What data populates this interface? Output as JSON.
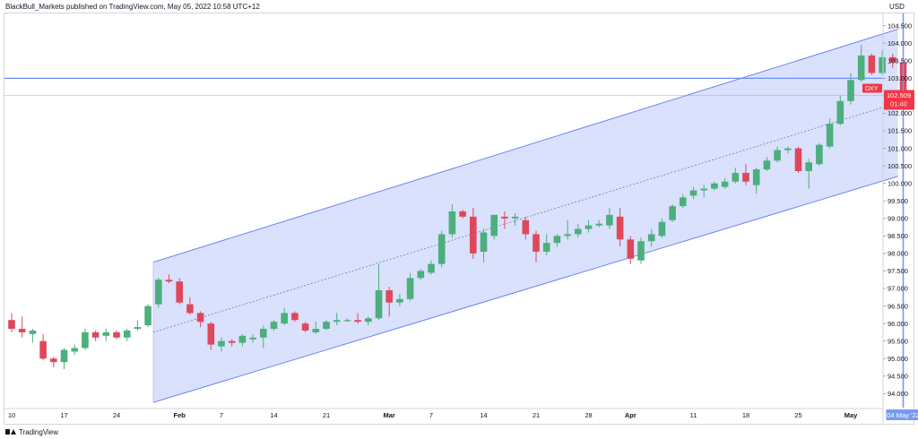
{
  "header": {
    "publisher": "BlackBull_Markets published on TradingView.com, May 05, 2022 10:58 UTC+12"
  },
  "footer": {
    "brand": "TradingView"
  },
  "colors": {
    "up": "#26a69a",
    "up_body": "#4caf7d",
    "down": "#ef5350",
    "down_body": "#e0475b",
    "channel_fill": "#d2dcfb",
    "channel_line": "#5b7cf0",
    "hline": "#6d8df5",
    "cursor": "#7a99f3",
    "price_line": "#f28b8b"
  },
  "chart_data": {
    "type": "candlestick",
    "symbol": "DXY",
    "currency": "USD",
    "last_price": "102.509",
    "countdown": "01:40",
    "horizontal_level": 103.0,
    "crosshair_date_label": "04 May '22",
    "x_labels": [
      {
        "label": "10",
        "bar": 0,
        "bold": false
      },
      {
        "label": "17",
        "bar": 5,
        "bold": false
      },
      {
        "label": "24",
        "bar": 10,
        "bold": false
      },
      {
        "label": "Feb",
        "bar": 16,
        "bold": true
      },
      {
        "label": "7",
        "bar": 20,
        "bold": false
      },
      {
        "label": "14",
        "bar": 25,
        "bold": false
      },
      {
        "label": "21",
        "bar": 30,
        "bold": false
      },
      {
        "label": "Mar",
        "bar": 36,
        "bold": true
      },
      {
        "label": "7",
        "bar": 40,
        "bold": false
      },
      {
        "label": "14",
        "bar": 45,
        "bold": false
      },
      {
        "label": "21",
        "bar": 50,
        "bold": false
      },
      {
        "label": "28",
        "bar": 55,
        "bold": false
      },
      {
        "label": "Apr",
        "bar": 59,
        "bold": true
      },
      {
        "label": "11",
        "bar": 65,
        "bold": false
      },
      {
        "label": "18",
        "bar": 70,
        "bold": false
      },
      {
        "label": "25",
        "bar": 75,
        "bold": false
      },
      {
        "label": "May",
        "bar": 80,
        "bold": true
      }
    ],
    "y_ticks": [
      "94.000",
      "94.500",
      "95.000",
      "95.500",
      "96.000",
      "96.500",
      "97.000",
      "97.500",
      "98.000",
      "98.500",
      "99.000",
      "99.500",
      "100.000",
      "100.500",
      "101.000",
      "101.500",
      "102.000",
      "102.500",
      "103.000",
      "103.500",
      "104.000",
      "104.500"
    ],
    "ylim": [
      93.6,
      104.85
    ],
    "channel": {
      "start_bar": 13.5,
      "end_bar": 84.5,
      "upper": [
        97.75,
        104.4
      ],
      "middle": [
        95.75,
        102.3
      ],
      "lower": [
        93.75,
        100.2
      ]
    },
    "candles": [
      {
        "o": 96.1,
        "h": 96.3,
        "l": 95.75,
        "c": 95.85
      },
      {
        "o": 95.85,
        "h": 96.2,
        "l": 95.6,
        "c": 95.75
      },
      {
        "o": 95.7,
        "h": 95.85,
        "l": 95.45,
        "c": 95.8
      },
      {
        "o": 95.5,
        "h": 95.7,
        "l": 94.95,
        "c": 95.0
      },
      {
        "o": 95.0,
        "h": 95.05,
        "l": 94.75,
        "c": 94.9
      },
      {
        "o": 94.9,
        "h": 95.3,
        "l": 94.7,
        "c": 95.25
      },
      {
        "o": 95.2,
        "h": 95.4,
        "l": 95.1,
        "c": 95.3
      },
      {
        "o": 95.3,
        "h": 95.85,
        "l": 95.25,
        "c": 95.75
      },
      {
        "o": 95.75,
        "h": 95.8,
        "l": 95.5,
        "c": 95.6
      },
      {
        "o": 95.65,
        "h": 95.85,
        "l": 95.5,
        "c": 95.75
      },
      {
        "o": 95.75,
        "h": 95.8,
        "l": 95.55,
        "c": 95.6
      },
      {
        "o": 95.6,
        "h": 95.85,
        "l": 95.5,
        "c": 95.8
      },
      {
        "o": 95.85,
        "h": 96.1,
        "l": 95.8,
        "c": 95.9
      },
      {
        "o": 95.95,
        "h": 96.55,
        "l": 95.9,
        "c": 96.5
      },
      {
        "o": 96.55,
        "h": 97.3,
        "l": 96.45,
        "c": 97.25
      },
      {
        "o": 97.25,
        "h": 97.4,
        "l": 97.15,
        "c": 97.2
      },
      {
        "o": 97.2,
        "h": 97.3,
        "l": 96.55,
        "c": 96.6
      },
      {
        "o": 96.55,
        "h": 96.75,
        "l": 96.25,
        "c": 96.3
      },
      {
        "o": 96.3,
        "h": 96.35,
        "l": 95.9,
        "c": 96.05
      },
      {
        "o": 96.0,
        "h": 96.05,
        "l": 95.25,
        "c": 95.4
      },
      {
        "o": 95.35,
        "h": 95.6,
        "l": 95.2,
        "c": 95.5
      },
      {
        "o": 95.5,
        "h": 95.55,
        "l": 95.35,
        "c": 95.45
      },
      {
        "o": 95.45,
        "h": 95.7,
        "l": 95.35,
        "c": 95.65
      },
      {
        "o": 95.55,
        "h": 95.7,
        "l": 95.45,
        "c": 95.6
      },
      {
        "o": 95.6,
        "h": 95.95,
        "l": 95.3,
        "c": 95.85
      },
      {
        "o": 95.85,
        "h": 96.1,
        "l": 95.8,
        "c": 96.05
      },
      {
        "o": 96.0,
        "h": 96.45,
        "l": 95.95,
        "c": 96.3
      },
      {
        "o": 96.3,
        "h": 96.35,
        "l": 96.05,
        "c": 96.1
      },
      {
        "o": 96.0,
        "h": 96.05,
        "l": 95.75,
        "c": 95.8
      },
      {
        "o": 95.75,
        "h": 96.05,
        "l": 95.7,
        "c": 95.85
      },
      {
        "o": 95.85,
        "h": 96.1,
        "l": 95.8,
        "c": 96.05
      },
      {
        "o": 96.05,
        "h": 96.3,
        "l": 95.95,
        "c": 96.1
      },
      {
        "o": 96.1,
        "h": 96.15,
        "l": 96.05,
        "c": 96.1
      },
      {
        "o": 96.1,
        "h": 96.3,
        "l": 96.0,
        "c": 96.05
      },
      {
        "o": 96.05,
        "h": 96.2,
        "l": 95.95,
        "c": 96.15
      },
      {
        "o": 96.15,
        "h": 97.7,
        "l": 96.1,
        "c": 96.95
      },
      {
        "o": 96.95,
        "h": 97.05,
        "l": 96.2,
        "c": 96.6
      },
      {
        "o": 96.6,
        "h": 96.85,
        "l": 96.5,
        "c": 96.7
      },
      {
        "o": 96.7,
        "h": 97.45,
        "l": 96.65,
        "c": 97.3
      },
      {
        "o": 97.3,
        "h": 97.55,
        "l": 97.25,
        "c": 97.5
      },
      {
        "o": 97.45,
        "h": 97.8,
        "l": 97.4,
        "c": 97.7
      },
      {
        "o": 97.7,
        "h": 98.65,
        "l": 97.6,
        "c": 98.55
      },
      {
        "o": 98.55,
        "h": 99.4,
        "l": 98.45,
        "c": 99.2
      },
      {
        "o": 99.2,
        "h": 99.25,
        "l": 99.0,
        "c": 99.05
      },
      {
        "o": 99.05,
        "h": 99.3,
        "l": 97.85,
        "c": 98.0
      },
      {
        "o": 98.05,
        "h": 98.7,
        "l": 97.75,
        "c": 98.6
      },
      {
        "o": 98.5,
        "h": 99.1,
        "l": 98.4,
        "c": 99.1
      },
      {
        "o": 99.05,
        "h": 99.2,
        "l": 98.7,
        "c": 99.0
      },
      {
        "o": 99.0,
        "h": 99.15,
        "l": 98.8,
        "c": 99.05
      },
      {
        "o": 98.95,
        "h": 99.05,
        "l": 98.4,
        "c": 98.55
      },
      {
        "o": 98.55,
        "h": 98.65,
        "l": 97.75,
        "c": 98.05
      },
      {
        "o": 98.05,
        "h": 98.55,
        "l": 97.95,
        "c": 98.3
      },
      {
        "o": 98.3,
        "h": 98.55,
        "l": 98.2,
        "c": 98.5
      },
      {
        "o": 98.5,
        "h": 98.95,
        "l": 98.4,
        "c": 98.55
      },
      {
        "o": 98.55,
        "h": 98.85,
        "l": 98.45,
        "c": 98.7
      },
      {
        "o": 98.7,
        "h": 98.95,
        "l": 98.6,
        "c": 98.8
      },
      {
        "o": 98.8,
        "h": 98.95,
        "l": 98.75,
        "c": 98.85
      },
      {
        "o": 98.8,
        "h": 99.3,
        "l": 98.7,
        "c": 99.1
      },
      {
        "o": 99.05,
        "h": 99.3,
        "l": 98.2,
        "c": 98.4
      },
      {
        "o": 98.4,
        "h": 98.5,
        "l": 97.7,
        "c": 97.85
      },
      {
        "o": 97.8,
        "h": 98.45,
        "l": 97.7,
        "c": 98.35
      },
      {
        "o": 98.35,
        "h": 98.7,
        "l": 98.2,
        "c": 98.55
      },
      {
        "o": 98.5,
        "h": 99.0,
        "l": 98.45,
        "c": 98.9
      },
      {
        "o": 98.95,
        "h": 99.4,
        "l": 98.9,
        "c": 99.35
      },
      {
        "o": 99.35,
        "h": 99.7,
        "l": 99.3,
        "c": 99.6
      },
      {
        "o": 99.65,
        "h": 99.9,
        "l": 99.55,
        "c": 99.8
      },
      {
        "o": 99.8,
        "h": 99.95,
        "l": 99.6,
        "c": 99.85
      },
      {
        "o": 99.85,
        "h": 100.05,
        "l": 99.8,
        "c": 100.0
      },
      {
        "o": 99.9,
        "h": 100.15,
        "l": 99.85,
        "c": 100.05
      },
      {
        "o": 100.05,
        "h": 100.45,
        "l": 100.0,
        "c": 100.3
      },
      {
        "o": 100.3,
        "h": 100.55,
        "l": 99.95,
        "c": 100.05
      },
      {
        "o": 99.95,
        "h": 100.45,
        "l": 99.7,
        "c": 100.4
      },
      {
        "o": 100.4,
        "h": 100.75,
        "l": 100.35,
        "c": 100.65
      },
      {
        "o": 100.65,
        "h": 101.05,
        "l": 100.6,
        "c": 100.95
      },
      {
        "o": 100.95,
        "h": 101.05,
        "l": 100.85,
        "c": 101.0
      },
      {
        "o": 101.0,
        "h": 101.05,
        "l": 100.3,
        "c": 100.35
      },
      {
        "o": 100.35,
        "h": 100.7,
        "l": 99.85,
        "c": 100.6
      },
      {
        "o": 100.55,
        "h": 101.15,
        "l": 100.5,
        "c": 101.1
      },
      {
        "o": 101.05,
        "h": 101.85,
        "l": 101.0,
        "c": 101.7
      },
      {
        "o": 101.7,
        "h": 102.5,
        "l": 101.65,
        "c": 102.35
      },
      {
        "o": 102.35,
        "h": 103.15,
        "l": 102.25,
        "c": 102.95
      },
      {
        "o": 102.95,
        "h": 103.95,
        "l": 102.9,
        "c": 103.65
      },
      {
        "o": 103.65,
        "h": 103.7,
        "l": 103.1,
        "c": 103.15
      },
      {
        "o": 103.15,
        "h": 103.8,
        "l": 103.1,
        "c": 103.6
      },
      {
        "o": 103.6,
        "h": 103.7,
        "l": 103.3,
        "c": 103.45
      },
      {
        "o": 103.45,
        "h": 103.5,
        "l": 102.45,
        "c": 102.509
      }
    ]
  }
}
